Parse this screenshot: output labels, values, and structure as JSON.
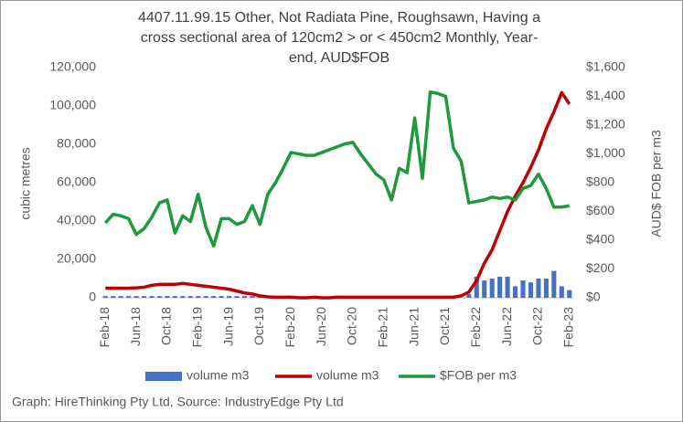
{
  "chart_data": {
    "type": "combo",
    "title": "4407.11.99.15    Other, Not Radiata Pine, Roughsawn, Having a cross sectional area of 120cm2  > or < 450cm2  Monthly, Year-end, AUD$FOB",
    "ylabel": "cubic metres",
    "y2label": "AUD$ FOB per m3",
    "source": "Graph: HireThinking Pty Ltd,   Source: IndustryEdge Pty Ltd",
    "categories": [
      "Feb-18",
      null,
      null,
      null,
      "Jun-18",
      null,
      null,
      null,
      "Oct-18",
      null,
      null,
      null,
      "Feb-19",
      null,
      null,
      null,
      "Jun-19",
      null,
      null,
      null,
      "Oct-19",
      null,
      null,
      null,
      "Feb-20",
      null,
      null,
      null,
      "Jun-20",
      null,
      null,
      null,
      "Oct-20",
      null,
      null,
      null,
      "Feb-21",
      null,
      null,
      null,
      "Jun-21",
      null,
      null,
      null,
      "Oct-21",
      null,
      null,
      null,
      "Feb-22",
      null,
      null,
      null,
      "Jun-22",
      null,
      null,
      null,
      "Oct-22",
      null,
      null,
      null,
      "Feb-23"
    ],
    "series": [
      {
        "name": "volume m3",
        "type": "bar",
        "color": "#4472c4",
        "values": [
          900,
          900,
          900,
          900,
          900,
          900,
          900,
          900,
          900,
          900,
          900,
          900,
          900,
          900,
          900,
          900,
          900,
          900,
          900,
          900,
          900,
          0,
          0,
          0,
          0,
          0,
          0,
          0,
          0,
          0,
          0,
          0,
          0,
          0,
          0,
          0,
          0,
          0,
          0,
          0,
          0,
          0,
          0,
          0,
          0,
          0,
          0,
          2000,
          11000,
          9000,
          10000,
          11000,
          11000,
          6000,
          9000,
          8000,
          10000,
          10000,
          14000,
          6000,
          4000
        ]
      },
      {
        "name": "volume m3",
        "type": "line",
        "color": "#c00000",
        "values": [
          5000,
          5000,
          5000,
          5000,
          5200,
          5500,
          6500,
          7000,
          7000,
          7000,
          7500,
          7000,
          6500,
          6000,
          5500,
          5000,
          4500,
          3500,
          2500,
          2000,
          1000,
          500,
          300,
          300,
          300,
          0,
          0,
          300,
          0,
          0,
          300,
          300,
          300,
          300,
          300,
          300,
          300,
          300,
          300,
          300,
          300,
          300,
          300,
          300,
          300,
          300,
          1000,
          3000,
          9000,
          18000,
          25000,
          35000,
          45000,
          53000,
          60000,
          68000,
          77000,
          88000,
          97000,
          107000,
          101000
        ]
      },
      {
        "name": "$FOB per m3",
        "type": "line",
        "axis": "y2",
        "color": "#1e9a3c",
        "values": [
          520,
          580,
          570,
          550,
          440,
          480,
          560,
          660,
          680,
          450,
          570,
          530,
          720,
          490,
          360,
          550,
          550,
          510,
          530,
          640,
          510,
          720,
          800,
          900,
          1010,
          1000,
          990,
          990,
          1010,
          1030,
          1050,
          1070,
          1080,
          1000,
          930,
          860,
          820,
          680,
          900,
          870,
          1250,
          830,
          1430,
          1420,
          1400,
          1040,
          950,
          660,
          670,
          680,
          700,
          690,
          700,
          680,
          760,
          780,
          860,
          760,
          630,
          630,
          640
        ]
      }
    ],
    "ylim": [
      0,
      120000
    ],
    "yticks": [
      0,
      {
        "value": 20000,
        "label": "20,000"
      },
      {
        "value": 40000,
        "label": "40,000"
      },
      {
        "value": 60000,
        "label": "60,000"
      },
      {
        "value": 80000,
        "label": "80,000"
      },
      {
        "value": 100000,
        "label": "100,000"
      },
      {
        "value": 120000,
        "label": "120,000"
      }
    ],
    "y2lim": [
      0,
      1600
    ],
    "y2ticks": [
      {
        "value": 0,
        "label": "$0"
      },
      {
        "value": 200,
        "label": "$200"
      },
      {
        "value": 400,
        "label": "$400"
      },
      {
        "value": 600,
        "label": "$600"
      },
      {
        "value": 800,
        "label": "$800"
      },
      {
        "value": 1000,
        "label": "$1,000"
      },
      {
        "value": 1200,
        "label": "$1,200"
      },
      {
        "value": 1400,
        "label": "$1,400"
      },
      {
        "value": 1600,
        "label": "$1,600"
      }
    ],
    "grid": false,
    "legend": "bottom"
  }
}
